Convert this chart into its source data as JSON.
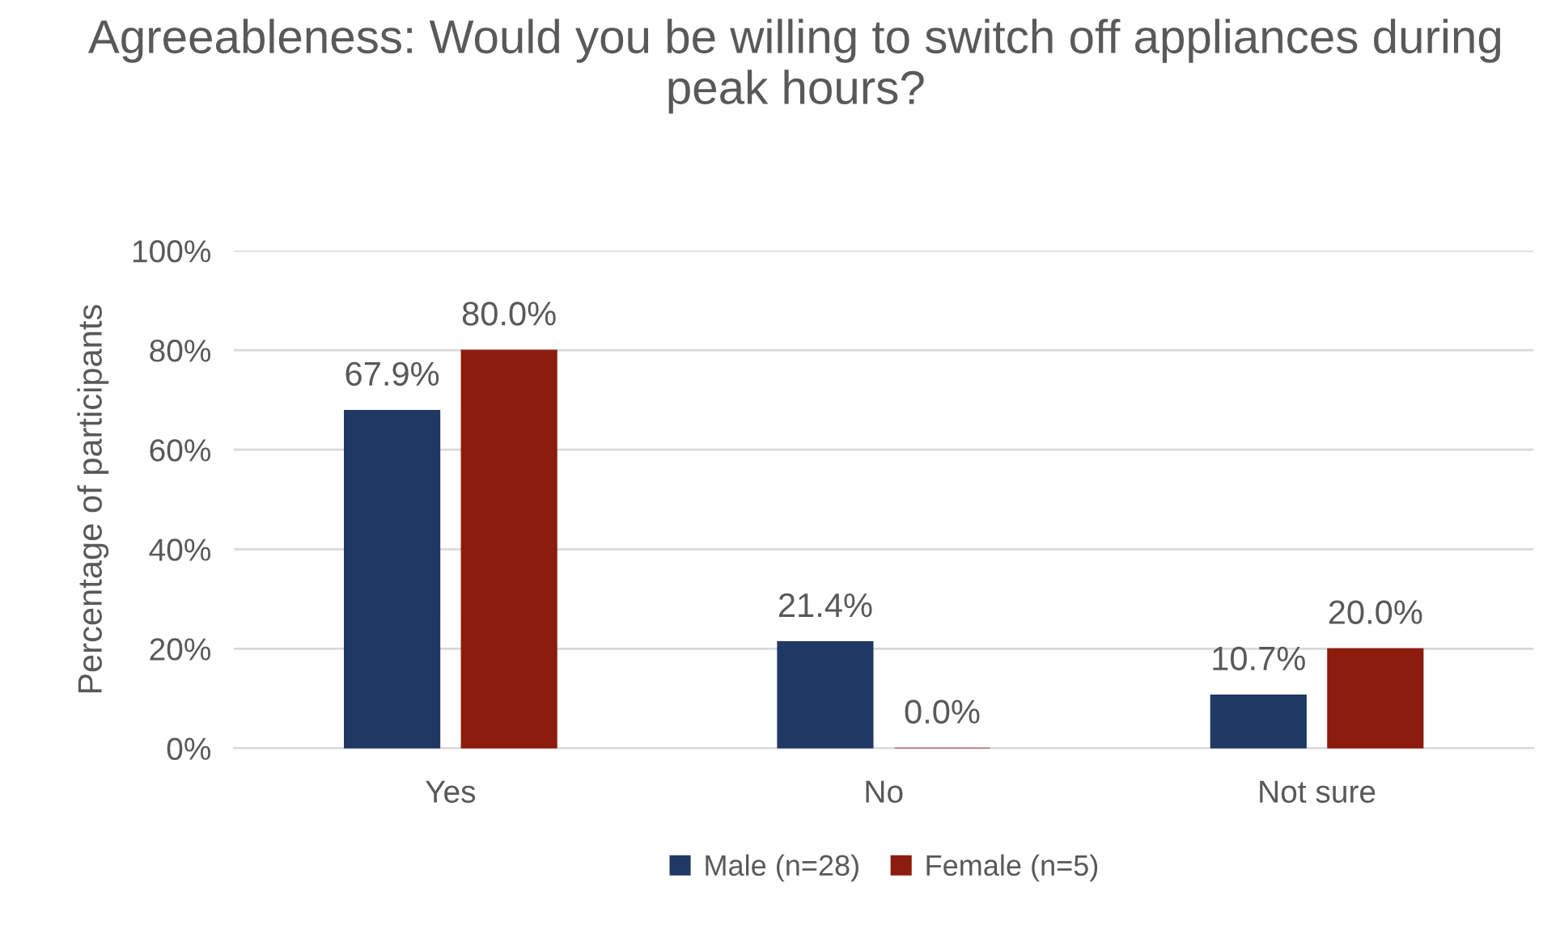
{
  "chart_data": {
    "type": "bar",
    "title": "Agreeableness: Would you be willing to switch off appliances during peak hours?",
    "ylabel": "Percentage of participants",
    "categories": [
      "Yes",
      "No",
      "Not sure"
    ],
    "series": [
      {
        "name": "Male (n=28)",
        "color": "#203864",
        "values": [
          67.9,
          21.4,
          10.7
        ],
        "value_labels": [
          "67.9%",
          "21.4%",
          "10.7%"
        ]
      },
      {
        "name": "Female (n=5)",
        "color": "#8b1c0e",
        "values": [
          80.0,
          0.0,
          20.0
        ],
        "value_labels": [
          "80.0%",
          "0.0%",
          "20.0%"
        ]
      }
    ],
    "ylim": [
      0,
      100
    ],
    "yticks": [
      {
        "value": 0,
        "label": "0%"
      },
      {
        "value": 20,
        "label": "20%"
      },
      {
        "value": 40,
        "label": "40%"
      },
      {
        "value": 60,
        "label": "60%"
      },
      {
        "value": 80,
        "label": "80%"
      },
      {
        "value": 100,
        "label": "100%"
      }
    ],
    "grid": "y",
    "legend": "bottom"
  }
}
